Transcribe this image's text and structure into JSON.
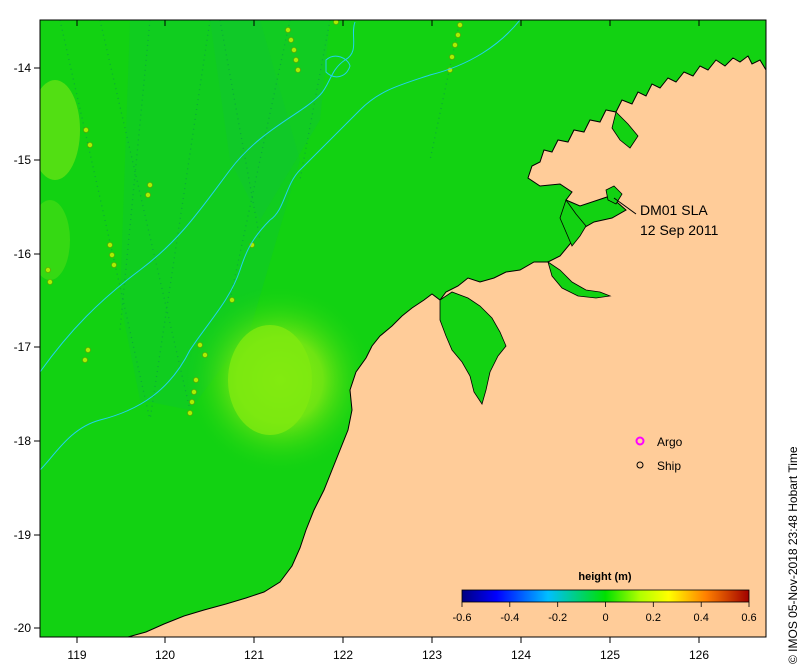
{
  "map": {
    "product_label": "DM01 SLA",
    "date_label": "12 Sep 2011",
    "credit": "© IMOS 05-Nov-2018 23:48 Hobart Time",
    "lon_ticks": [
      "119",
      "120",
      "121",
      "122",
      "123",
      "124",
      "125",
      "126"
    ],
    "lat_ticks": [
      "-14",
      "-15",
      "-16",
      "-17",
      "-18",
      "-19",
      "-20"
    ],
    "lon_range": [
      118.6,
      126.7
    ],
    "lat_range": [
      -20.1,
      -13.5
    ],
    "legend": {
      "argo_label": "Argo",
      "ship_label": "Ship",
      "argo_color": "#ff00ff",
      "ship_color": "#000000"
    },
    "colorbar": {
      "title": "height (m)",
      "ticks": [
        "-0.6",
        "-0.4",
        "-0.2",
        "0",
        "0.2",
        "0.4",
        "0.6"
      ],
      "range": [
        -0.6,
        0.6
      ]
    },
    "colors": {
      "ocean": "#12d212",
      "land": "#ffcc99",
      "coastline": "#000000",
      "isobath": "#22d3ee",
      "high_anomaly": "#7de80d"
    }
  }
}
